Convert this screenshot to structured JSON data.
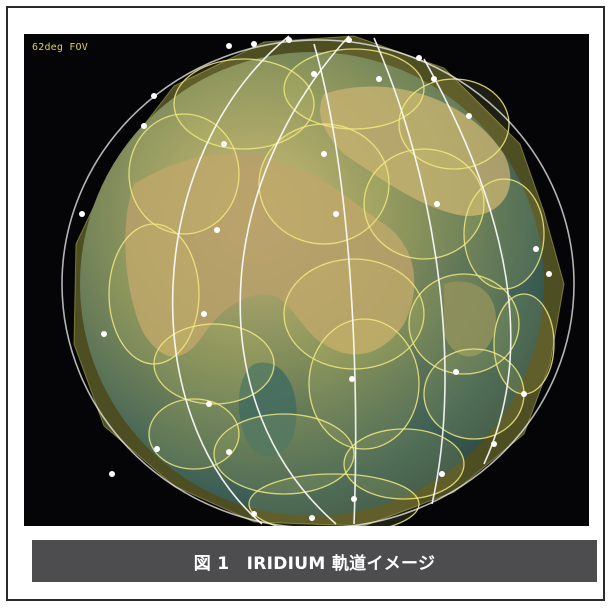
{
  "figure": {
    "fov_label": "62deg FOV",
    "colors": {
      "background": "#050507",
      "ocean": "#2f5a5a",
      "land": "#a9935a",
      "footprint": "#e9e06a",
      "orbit": "#ffffff"
    },
    "icons": [
      "earth-globe",
      "orbit-lines",
      "satellite-dots",
      "coverage-footprints"
    ]
  },
  "caption": {
    "text": "図 1　IRIDIUM 軌道イメージ",
    "bar_color": "#4d4d4f",
    "text_color": "#ffffff"
  }
}
